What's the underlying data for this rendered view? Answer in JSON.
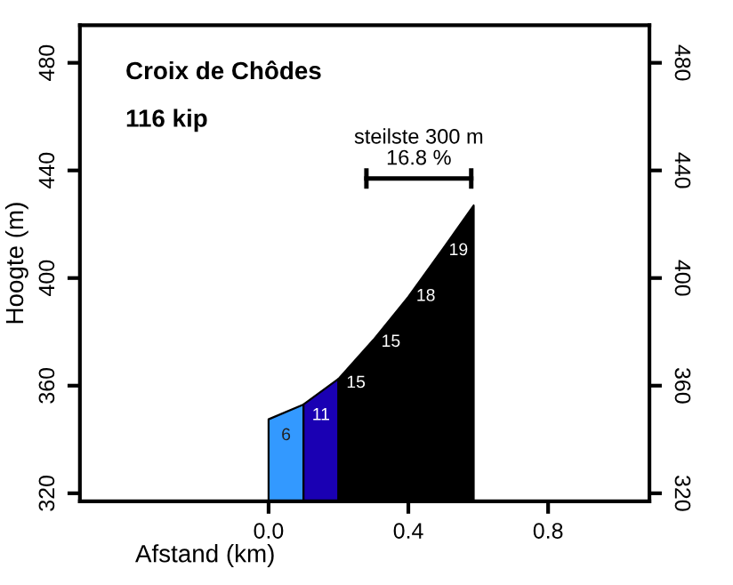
{
  "chart_data": {
    "type": "area",
    "title": "Croix de Chôdes",
    "subtitle": "116 kip",
    "xlabel": "Afstand (km)",
    "ylabel": "Hoogte (m)",
    "series": [
      {
        "color": "#3399ff",
        "x": [
          0,
          0.1
        ],
        "values": [
          347.5,
          353
        ]
      },
      {
        "color": "#1a00b3",
        "x": [
          0.1,
          0.2
        ],
        "values": [
          353,
          362.5
        ]
      },
      {
        "color": "#000000",
        "x": [
          0.2,
          0.3,
          0.4,
          0.5,
          0.587
        ],
        "values": [
          362.5,
          377,
          393,
          411,
          427
        ]
      },
      {
        "type": "line",
        "color": "#000000",
        "x": [
          0.28,
          0.58
        ],
        "values": [
          437,
          437
        ]
      }
    ],
    "annotations": [
      "6",
      "11",
      "15",
      "15",
      "18",
      "19",
      "steilste 300 m\n16.8 %"
    ],
    "xlim": [
      -0.54,
      1.09
    ],
    "xticks": [
      {
        "value": 0,
        "label": "0.0"
      },
      0.4,
      0.8
    ],
    "ylim": [
      317,
      494
    ],
    "yticks": [
      320,
      360,
      400,
      440,
      480
    ],
    "y2lim": [
      317,
      494
    ],
    "y2ticks": [
      320,
      360,
      400,
      440,
      480
    ],
    "grid": false
  }
}
